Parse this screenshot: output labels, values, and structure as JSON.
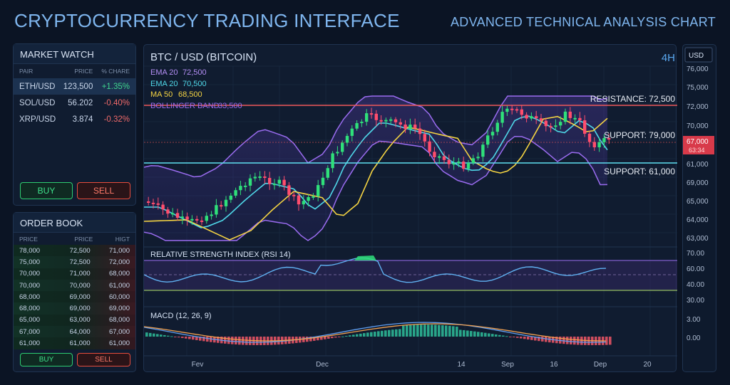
{
  "header": {
    "title": "CRYPTOCURRENCY TRADING INTERFACE",
    "subtitle": "ADVANCED TECHNICAL ANALYSIS CHART"
  },
  "market_watch": {
    "title": "MARKET WATCH",
    "columns": [
      "PAIR",
      "PRICE",
      "% CHARE"
    ],
    "rows": [
      {
        "pair": "ETH/USD",
        "price": "123,500",
        "change": "+1.35%",
        "dir": "up"
      },
      {
        "pair": "SOL/USD",
        "price": "56.202",
        "change": "-0.40%",
        "dir": "down"
      },
      {
        "pair": "XRP/USD",
        "price": "3.874",
        "change": "-0.32%",
        "dir": "down"
      }
    ],
    "buy_label": "BUY",
    "sell_label": "SELL"
  },
  "order_book": {
    "title": "ORDER BOOK",
    "columns": [
      "PRICE",
      "PRICE",
      "HIGT"
    ],
    "rows": [
      [
        "78,000",
        "72,500",
        "71,000"
      ],
      [
        "75,000",
        "72,500",
        "72,000"
      ],
      [
        "70,000",
        "71,000",
        "68,000"
      ],
      [
        "70,000",
        "70,000",
        "61,000"
      ],
      [
        "68,000",
        "69,000",
        "60,000"
      ],
      [
        "68,000",
        "69,000",
        "69,000"
      ],
      [
        "65,000",
        "63,000",
        "68,000"
      ],
      [
        "67,000",
        "64,000",
        "67,000"
      ],
      [
        "61,000",
        "61,000",
        "61,000"
      ]
    ],
    "buy_label": "BUY",
    "sell_label": "SELL"
  },
  "chart": {
    "symbol": "BTC / USD (BITCOIN)",
    "timeframe": "4H",
    "currency": "USD",
    "legend": [
      {
        "label": "EMA 20",
        "value": "72,500",
        "color": "#b48ef5"
      },
      {
        "label": "EMA 20",
        "value": "70,500",
        "color": "#4fd8e8"
      },
      {
        "label": "MA 50",
        "value": "68,500",
        "color": "#f5d442"
      },
      {
        "label": "BOLLINGER BAND",
        "value": "33,500",
        "color": "#9a6cf0"
      }
    ],
    "levels": [
      {
        "label": "RESISTANCE: 72,500"
      },
      {
        "label": "SUPPORT: 79,000"
      },
      {
        "label": "SUPPORT: 61,000"
      }
    ],
    "price_ticks": [
      "76,000",
      "75,000",
      "72,000",
      "70,000",
      "67,000",
      "61,000",
      "69,000",
      "65,000",
      "64,000",
      "63,000"
    ],
    "current_price": "67,000",
    "countdown": "63:34",
    "rsi_label": "RELATIVE STRENGTH INDEX (RSI 14)",
    "rsi_ticks": [
      "70.00",
      "60.00",
      "40.00",
      "30.00"
    ],
    "macd_label": "MACD (12, 26, 9)",
    "macd_ticks": [
      "3.00",
      "0.00"
    ],
    "x_ticks": [
      "Fev",
      "Dec",
      "14",
      "Sep",
      "16",
      "Dep",
      "20"
    ],
    "colors": {
      "up": "#2fe07a",
      "down": "#ff4d6d",
      "resistance": "#f05a5a",
      "support": "#5fe0f0"
    }
  }
}
